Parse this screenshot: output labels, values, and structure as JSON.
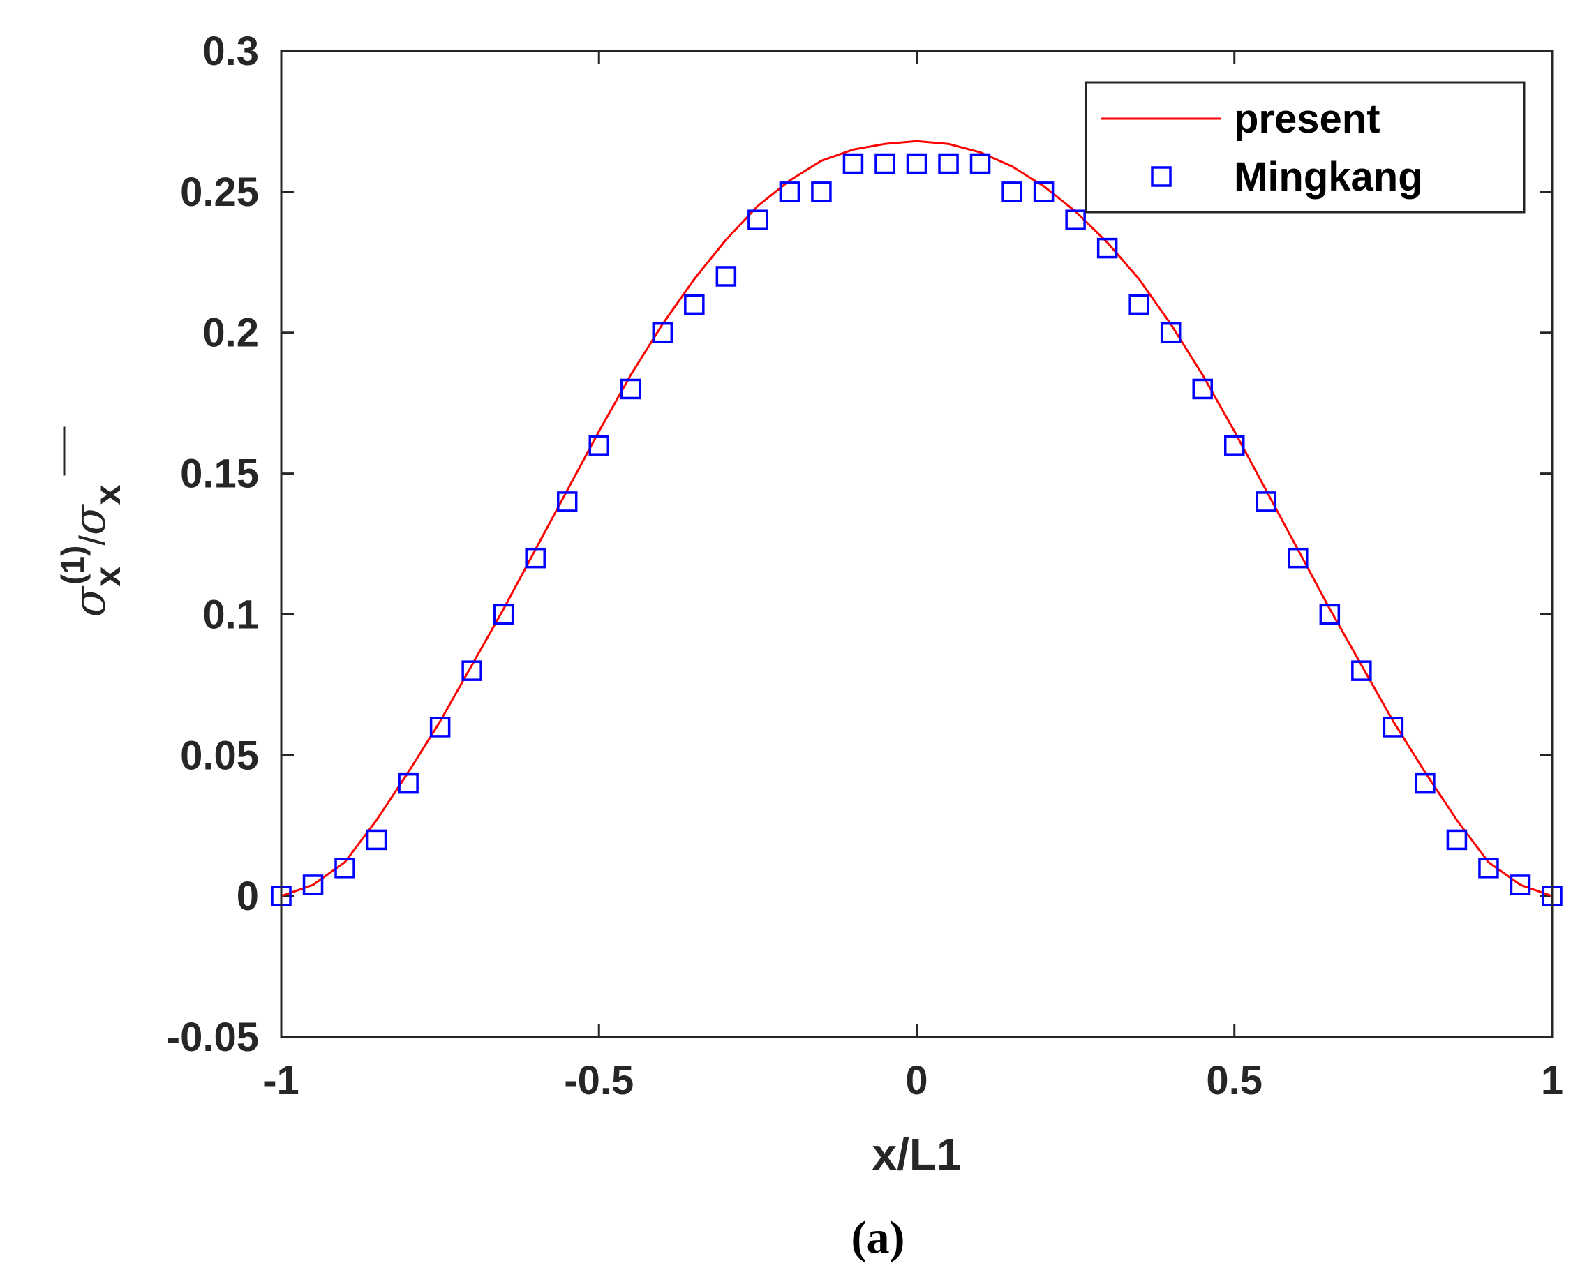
{
  "chart_data": {
    "type": "line",
    "title": "",
    "xlabel": "x/L1",
    "ylabel": {
      "base": "σ",
      "sub": "x",
      "sup": "(1)",
      "slash": "/",
      "den_base": "σ",
      "den_sub": "x"
    },
    "xlim": [
      -1,
      1
    ],
    "ylim": [
      -0.05,
      0.3
    ],
    "xticks": [
      -1,
      -0.5,
      0,
      0.5,
      1
    ],
    "xtick_labels": [
      "-1",
      "-0.5",
      "0",
      "0.5",
      "1"
    ],
    "yticks": [
      -0.05,
      0,
      0.05,
      0.1,
      0.15,
      0.2,
      0.25,
      0.3
    ],
    "ytick_labels": [
      "-0.05",
      "0",
      "0.05",
      "0.1",
      "0.15",
      "0.2",
      "0.25",
      "0.3"
    ],
    "grid": false,
    "legend_position": "top-right",
    "series": [
      {
        "name": "present",
        "kind": "line",
        "color": "#ff0000",
        "x": [
          -1,
          -0.95,
          -0.9,
          -0.85,
          -0.8,
          -0.75,
          -0.7,
          -0.65,
          -0.6,
          -0.55,
          -0.5,
          -0.45,
          -0.4,
          -0.35,
          -0.3,
          -0.25,
          -0.2,
          -0.15,
          -0.1,
          -0.05,
          0,
          0.05,
          0.1,
          0.15,
          0.2,
          0.25,
          0.3,
          0.35,
          0.4,
          0.45,
          0.5,
          0.55,
          0.6,
          0.65,
          0.7,
          0.75,
          0.8,
          0.85,
          0.9,
          0.95,
          1
        ],
        "y": [
          0,
          0.004,
          0.012,
          0.027,
          0.044,
          0.062,
          0.082,
          0.102,
          0.123,
          0.144,
          0.165,
          0.185,
          0.203,
          0.219,
          0.233,
          0.245,
          0.254,
          0.261,
          0.265,
          0.267,
          0.268,
          0.267,
          0.264,
          0.259,
          0.252,
          0.243,
          0.232,
          0.219,
          0.203,
          0.185,
          0.165,
          0.144,
          0.123,
          0.102,
          0.082,
          0.062,
          0.044,
          0.027,
          0.012,
          0.004,
          0
        ]
      },
      {
        "name": "Mingkang",
        "kind": "scatter",
        "marker": "square",
        "color": "#0000ff",
        "x": [
          -1,
          -0.95,
          -0.9,
          -0.85,
          -0.8,
          -0.75,
          -0.7,
          -0.65,
          -0.6,
          -0.55,
          -0.5,
          -0.45,
          -0.4,
          -0.35,
          -0.3,
          -0.25,
          -0.2,
          -0.15,
          -0.1,
          -0.05,
          0,
          0.05,
          0.1,
          0.15,
          0.2,
          0.25,
          0.3,
          0.35,
          0.4,
          0.45,
          0.5,
          0.55,
          0.6,
          0.65,
          0.7,
          0.75,
          0.8,
          0.85,
          0.9,
          0.95,
          1
        ],
        "y": [
          0,
          0.004,
          0.01,
          0.02,
          0.04,
          0.06,
          0.08,
          0.1,
          0.12,
          0.14,
          0.16,
          0.18,
          0.2,
          0.21,
          0.22,
          0.24,
          0.25,
          0.25,
          0.26,
          0.26,
          0.26,
          0.26,
          0.26,
          0.25,
          0.25,
          0.24,
          0.23,
          0.21,
          0.2,
          0.18,
          0.16,
          0.14,
          0.12,
          0.1,
          0.08,
          0.06,
          0.04,
          0.02,
          0.01,
          0.004,
          0
        ]
      }
    ],
    "caption": "(a)"
  }
}
